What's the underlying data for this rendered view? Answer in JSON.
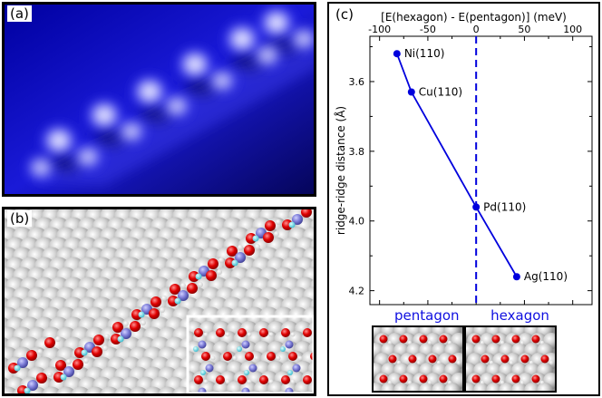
{
  "panels": {
    "a": {
      "label": "(a)"
    },
    "b": {
      "label": "(b)"
    },
    "c": {
      "label": "(c)"
    }
  },
  "colors": {
    "stm_dark": "#00008c",
    "stm_mid": "#3434ff",
    "stm_bright": "#f0f0ff",
    "metal_atom": "#b4b4b4",
    "oxygen": "#e00000",
    "nitrogen": "#7d7dd8",
    "hydrogen": "#ffffff",
    "light_h": "#5ad8e6",
    "series_line": "#0000dd",
    "label_blue": "#1010e0"
  },
  "chart_data": {
    "type": "line",
    "title": "",
    "xlabel": "[E(hexagon) - E(pentagon)] (meV)",
    "ylabel": "ridge-ridge distance (Å)",
    "xlim": [
      -110,
      120
    ],
    "ylim": [
      3.47,
      4.24
    ],
    "y_inverted": true,
    "xticks": [
      -100,
      -50,
      0,
      50,
      100
    ],
    "xticklabels": [
      "-100",
      "-50",
      "0",
      "50",
      "100"
    ],
    "yticks": [
      3.6,
      3.8,
      4.0,
      4.2
    ],
    "yticklabels": [
      "3.6",
      "3.8",
      "4.0",
      "4.2"
    ],
    "vline_x": 0,
    "grid": false,
    "points": [
      {
        "label": "Ni(110)",
        "x": -82,
        "y": 3.52
      },
      {
        "label": "Cu(110)",
        "x": -67,
        "y": 3.63
      },
      {
        "label": "Pd(110)",
        "x": 0,
        "y": 3.96
      },
      {
        "label": "Ag(110)",
        "x": 42,
        "y": 4.16
      }
    ],
    "region_labels": {
      "left": "pentagon",
      "right": "hexagon"
    }
  }
}
